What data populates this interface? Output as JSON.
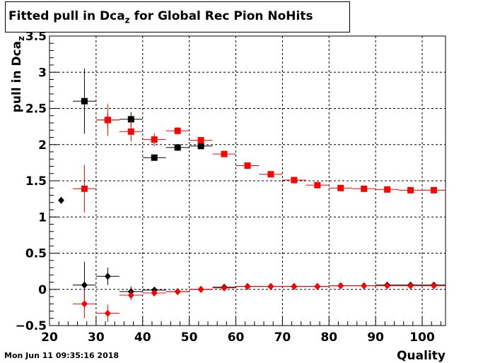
{
  "title": {
    "main": "Fitted pull in Dca",
    "sub": "z",
    "rest": " for Global Rec Pion NoHits"
  },
  "timestamp": "Mon Jun 11 09:35:16 2018",
  "chart_data": {
    "type": "scatter",
    "xlabel": "Quality",
    "ylabel": "pull in Dca",
    "ylabel_sub": "z",
    "xlim": [
      20,
      105
    ],
    "ylim": [
      -0.5,
      3.5
    ],
    "x_ticks": [
      20,
      30,
      40,
      50,
      60,
      70,
      80,
      90,
      100
    ],
    "y_ticks": [
      -0.5,
      0,
      0.5,
      1,
      1.5,
      2,
      2.5,
      3,
      3.5
    ],
    "y_tick_labels": [
      "−0.5",
      "0",
      "0.5",
      "1",
      "1.5",
      "2",
      "2.5",
      "3",
      "3.5"
    ],
    "grid": true,
    "series": [
      {
        "color": "#000000",
        "marker": "square",
        "points": [
          {
            "x": 27.5,
            "y": 2.6,
            "ey": 0.45
          },
          {
            "x": 32.5,
            "y": 2.34,
            "ey": 0.1
          },
          {
            "x": 37.5,
            "y": 2.35,
            "ey": 0.1
          },
          {
            "x": 42.5,
            "y": 1.82,
            "ey": 0.04
          },
          {
            "x": 47.5,
            "y": 1.96,
            "ey": 0.03
          },
          {
            "x": 52.5,
            "y": 1.98,
            "ey": 0.03
          }
        ]
      },
      {
        "color": "#ff0000",
        "marker": "square",
        "points": [
          {
            "x": 27.5,
            "y": 1.39,
            "ey": 0.33
          },
          {
            "x": 32.5,
            "y": 2.34,
            "ey": 0.22
          },
          {
            "x": 37.5,
            "y": 2.18,
            "ey": 0.14
          },
          {
            "x": 42.5,
            "y": 2.07,
            "ey": 0.09
          },
          {
            "x": 47.5,
            "y": 2.19,
            "ey": 0.05
          },
          {
            "x": 52.5,
            "y": 2.06,
            "ey": 0.03
          },
          {
            "x": 57.5,
            "y": 1.87,
            "ey": 0.02
          },
          {
            "x": 62.5,
            "y": 1.71,
            "ey": 0.02
          },
          {
            "x": 67.5,
            "y": 1.59,
            "ey": 0.02
          },
          {
            "x": 72.5,
            "y": 1.51,
            "ey": 0.02
          },
          {
            "x": 77.5,
            "y": 1.44,
            "ey": 0.02
          },
          {
            "x": 82.5,
            "y": 1.4,
            "ey": 0.02
          },
          {
            "x": 87.5,
            "y": 1.39,
            "ey": 0.01
          },
          {
            "x": 92.5,
            "y": 1.38,
            "ey": 0.01
          },
          {
            "x": 97.5,
            "y": 1.37,
            "ey": 0.01
          },
          {
            "x": 102.5,
            "y": 1.37,
            "ey": 0.01
          }
        ]
      },
      {
        "color": "#000000",
        "marker": "diamond",
        "points": [
          {
            "x": 22.5,
            "y": 1.23,
            "ey": 0.0
          },
          {
            "x": 27.5,
            "y": 0.06,
            "ey": 0.32
          },
          {
            "x": 32.5,
            "y": 0.18,
            "ey": 0.12
          },
          {
            "x": 37.5,
            "y": -0.03,
            "ey": 0.07
          },
          {
            "x": 42.5,
            "y": -0.01,
            "ey": 0.03
          },
          {
            "x": 47.5,
            "y": -0.03,
            "ey": 0.02
          },
          {
            "x": 52.5,
            "y": 0.0,
            "ey": 0.01
          },
          {
            "x": 57.5,
            "y": 0.03,
            "ey": 0.01
          },
          {
            "x": 62.5,
            "y": 0.04,
            "ey": 0.01
          },
          {
            "x": 67.5,
            "y": 0.04,
            "ey": 0.01
          },
          {
            "x": 72.5,
            "y": 0.04,
            "ey": 0.01
          },
          {
            "x": 77.5,
            "y": 0.04,
            "ey": 0.01
          },
          {
            "x": 82.5,
            "y": 0.05,
            "ey": 0.01
          },
          {
            "x": 87.5,
            "y": 0.05,
            "ey": 0.01
          },
          {
            "x": 92.5,
            "y": 0.06,
            "ey": 0.01
          },
          {
            "x": 97.5,
            "y": 0.06,
            "ey": 0.01
          },
          {
            "x": 102.5,
            "y": 0.06,
            "ey": 0.01
          }
        ]
      },
      {
        "color": "#ff0000",
        "marker": "diamond",
        "points": [
          {
            "x": 27.5,
            "y": -0.2,
            "ey": 0.2
          },
          {
            "x": 32.5,
            "y": -0.33,
            "ey": 0.12
          },
          {
            "x": 37.5,
            "y": -0.08,
            "ey": 0.07
          },
          {
            "x": 42.5,
            "y": -0.05,
            "ey": 0.04
          },
          {
            "x": 47.5,
            "y": -0.03,
            "ey": 0.03
          },
          {
            "x": 52.5,
            "y": 0.0,
            "ey": 0.02
          },
          {
            "x": 57.5,
            "y": 0.02,
            "ey": 0.01
          },
          {
            "x": 62.5,
            "y": 0.04,
            "ey": 0.01
          },
          {
            "x": 67.5,
            "y": 0.04,
            "ey": 0.01
          },
          {
            "x": 72.5,
            "y": 0.04,
            "ey": 0.01
          },
          {
            "x": 77.5,
            "y": 0.04,
            "ey": 0.01
          },
          {
            "x": 82.5,
            "y": 0.05,
            "ey": 0.01
          },
          {
            "x": 87.5,
            "y": 0.05,
            "ey": 0.01
          },
          {
            "x": 92.5,
            "y": 0.05,
            "ey": 0.01
          },
          {
            "x": 97.5,
            "y": 0.05,
            "ey": 0.01
          },
          {
            "x": 102.5,
            "y": 0.05,
            "ey": 0.01
          }
        ]
      }
    ]
  }
}
